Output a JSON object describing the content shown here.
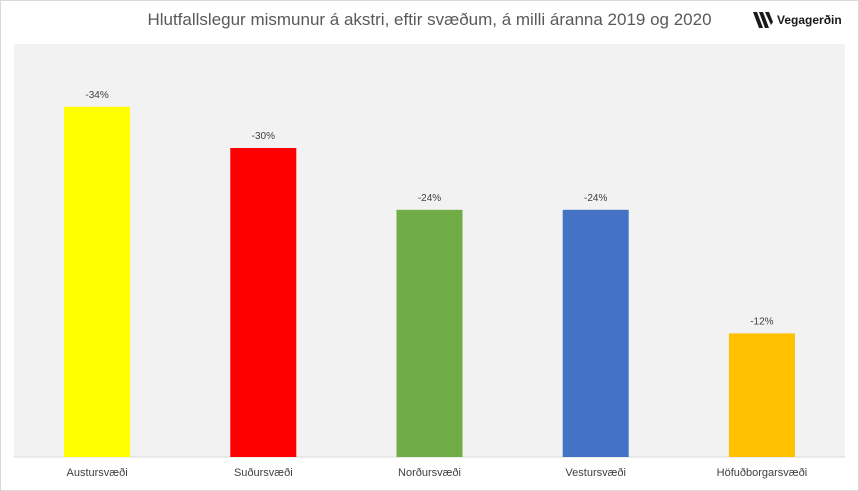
{
  "chart_data": {
    "type": "bar",
    "title": "Hlutfallslegur mismunur á akstri, eftir svæðum, á milli áranna 2019 og 2020",
    "categories": [
      "Austursvæði",
      "Suðursvæði",
      "Norðursvæði",
      "Vestursvæði",
      "Höfuðborgarsvæði"
    ],
    "values": [
      -34,
      -30,
      -24,
      -24,
      -12
    ],
    "data_labels": [
      "-34%",
      "-30%",
      "-24%",
      "-24%",
      "-12%"
    ],
    "value_unit": "%",
    "colors": [
      "#ffff00",
      "#ff0000",
      "#70ad47",
      "#4472c4",
      "#ffc000"
    ],
    "xlabel": "",
    "ylabel": "",
    "ylim": [
      -36,
      0
    ],
    "grid": false,
    "legend": "none",
    "plot_background": "#f2f2f2"
  },
  "branding": {
    "logo_text": "Vegagerðin",
    "logo_icon": "vegagerdin-stripes-icon"
  }
}
